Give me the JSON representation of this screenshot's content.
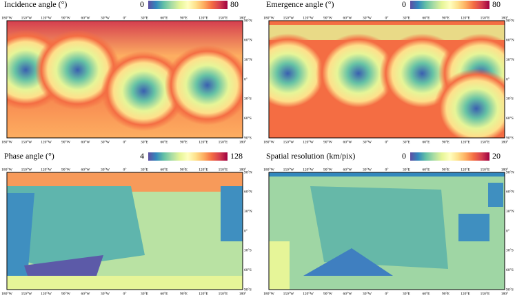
{
  "panels": [
    {
      "title": "Incidence angle (°)",
      "colorbar": {
        "min": "0",
        "max": "80"
      }
    },
    {
      "title": "Emergence angle (°)",
      "colorbar": {
        "min": "0",
        "max": "80"
      }
    },
    {
      "title": "Phase angle (°)",
      "colorbar": {
        "min": "4",
        "max": "128"
      }
    },
    {
      "title": "Spatial resolution (km/pix)",
      "colorbar": {
        "min": "0",
        "max": "20"
      }
    }
  ],
  "lon_ticks": [
    "180°W",
    "150°W",
    "120°W",
    "90°W",
    "60°W",
    "30°W",
    "0°",
    "30°E",
    "60°E",
    "90°E",
    "120°E",
    "150°E",
    "180°"
  ],
  "lat_ticks": [
    "90°N",
    "60°N",
    "30°N",
    "0°",
    "30°S",
    "60°S",
    "90°S"
  ]
}
